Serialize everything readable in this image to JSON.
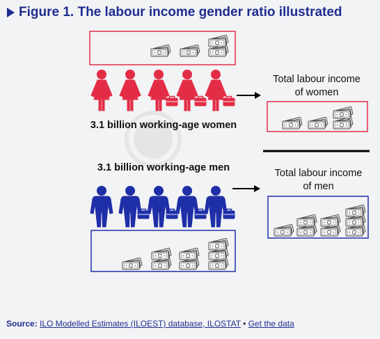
{
  "figure": {
    "title": "Figure 1. The labour income gender ratio illustrated"
  },
  "women": {
    "group_label": "3.1 billion working-age women",
    "income_label_line1": "Total labour income",
    "income_label_line2": "of women",
    "color": "#e32d47"
  },
  "men": {
    "group_label": "3.1 billion working-age men",
    "income_label_line1": "Total labour income",
    "income_label_line2": "of men",
    "color": "#1f2fa8"
  },
  "icons": {
    "person_woman": "woman-figure-icon",
    "person_man": "man-figure-icon",
    "briefcase": "briefcase-icon",
    "money": "banknote-stack-icon",
    "arrow": "arrow-right-icon",
    "watermark": "globe-watermark-icon"
  },
  "source": {
    "label": "Source:",
    "link1": "ILO Modelled Estimates (ILOEST) database, ILOSTAT",
    "separator": " • ",
    "link2": "Get the data"
  }
}
